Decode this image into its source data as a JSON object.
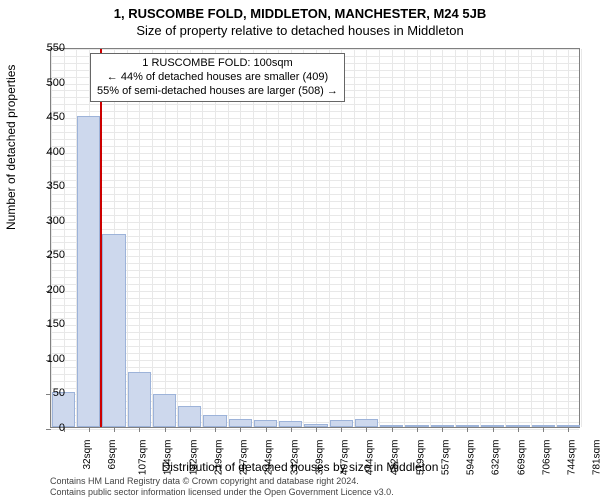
{
  "header": {
    "title": "1, RUSCOMBE FOLD, MIDDLETON, MANCHESTER, M24 5JB",
    "subtitle": "Size of property relative to detached houses in Middleton"
  },
  "chart": {
    "type": "bar",
    "ylabel": "Number of detached properties",
    "xlabel": "Distribution of detached houses by size in Middleton",
    "ylim": [
      0,
      550
    ],
    "ytick_step": 50,
    "grid_step_minor": 10,
    "yticks": [
      0,
      50,
      100,
      150,
      200,
      250,
      300,
      350,
      400,
      450,
      500,
      550
    ],
    "xticks": [
      "32sqm",
      "69sqm",
      "107sqm",
      "144sqm",
      "182sqm",
      "219sqm",
      "257sqm",
      "294sqm",
      "332sqm",
      "369sqm",
      "407sqm",
      "444sqm",
      "482sqm",
      "519sqm",
      "557sqm",
      "594sqm",
      "632sqm",
      "669sqm",
      "706sqm",
      "744sqm",
      "781sqm"
    ],
    "bars": [
      50,
      450,
      280,
      80,
      48,
      30,
      18,
      12,
      10,
      8,
      5,
      10,
      12,
      2,
      1,
      0,
      1,
      0,
      0,
      0,
      0
    ],
    "bar_color": "#cdd8ed",
    "bar_border": "#9db3d9",
    "grid_color": "#e8e8e8",
    "axis_color": "#808080",
    "marker": {
      "position_ratio": 0.093,
      "color": "#cc0000"
    },
    "annotation": {
      "line1": "1 RUSCOMBE FOLD: 100sqm",
      "line2": "← 44% of detached houses are smaller (409)",
      "line3": "55% of semi-detached houses are larger (508) →"
    },
    "label_fontsize": 12,
    "tick_fontsize": 11
  },
  "footer": {
    "line1": "Contains HM Land Registry data © Crown copyright and database right 2024.",
    "line2": "Contains public sector information licensed under the Open Government Licence v3.0."
  }
}
